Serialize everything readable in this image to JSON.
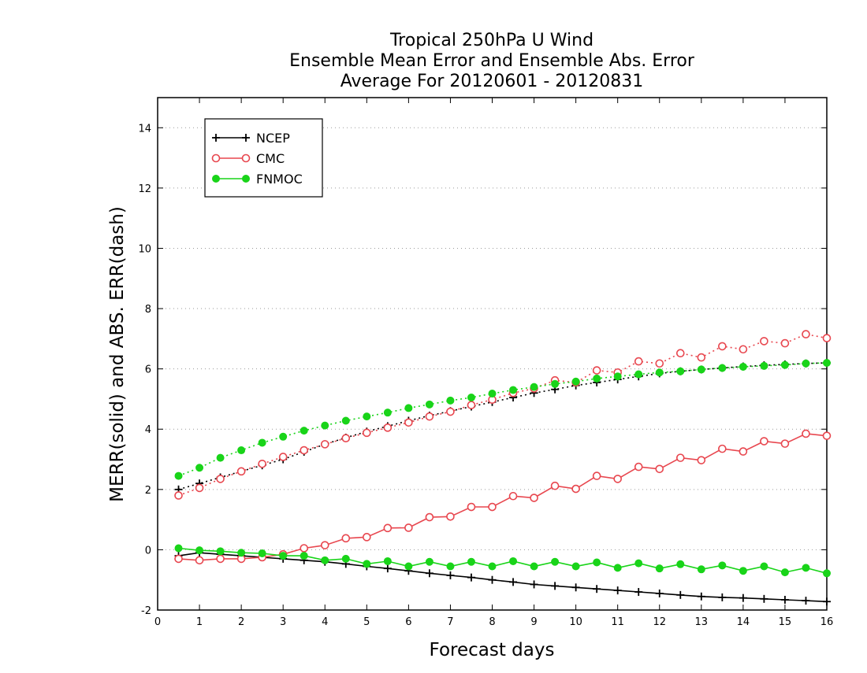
{
  "chart_data": {
    "type": "line",
    "title_lines": [
      "Tropical 250hPa U Wind",
      "Ensemble Mean Error and Ensemble Abs. Error",
      "Average For 20120601 - 20120831"
    ],
    "xlabel": "Forecast days",
    "ylabel": "MERR(solid) and ABS. ERR(dash)",
    "xlim": [
      0,
      16
    ],
    "ylim": [
      -2,
      15
    ],
    "x_ticks": [
      0,
      1,
      2,
      3,
      4,
      5,
      6,
      7,
      8,
      9,
      10,
      11,
      12,
      13,
      14,
      15,
      16
    ],
    "y_ticks": [
      -2,
      0,
      2,
      4,
      6,
      8,
      10,
      12,
      14
    ],
    "grid": "horizontal dotted",
    "legend_position": "top-left",
    "x": [
      0.5,
      1.0,
      1.5,
      2.0,
      2.5,
      3.0,
      3.5,
      4.0,
      4.5,
      5.0,
      5.5,
      6.0,
      6.5,
      7.0,
      7.5,
      8.0,
      8.5,
      9.0,
      9.5,
      10.0,
      10.5,
      11.0,
      11.5,
      12.0,
      12.5,
      13.0,
      13.5,
      14.0,
      14.5,
      15.0,
      15.5,
      16.0
    ],
    "series": [
      {
        "name": "NCEP",
        "color": "#000000",
        "marker": "plus",
        "mean_error": [
          -0.2,
          -0.1,
          -0.15,
          -0.2,
          -0.25,
          -0.3,
          -0.35,
          -0.4,
          -0.47,
          -0.55,
          -0.62,
          -0.7,
          -0.78,
          -0.85,
          -0.92,
          -1.0,
          -1.07,
          -1.15,
          -1.2,
          -1.25,
          -1.3,
          -1.35,
          -1.4,
          -1.45,
          -1.5,
          -1.55,
          -1.58,
          -1.6,
          -1.63,
          -1.66,
          -1.69,
          -1.72
        ],
        "abs_error": [
          2.0,
          2.2,
          2.4,
          2.6,
          2.8,
          3.0,
          3.25,
          3.5,
          3.72,
          3.92,
          4.1,
          4.28,
          4.45,
          4.6,
          4.75,
          4.9,
          5.05,
          5.2,
          5.32,
          5.45,
          5.55,
          5.65,
          5.75,
          5.85,
          5.92,
          5.98,
          6.03,
          6.08,
          6.12,
          6.15,
          6.18,
          6.2
        ]
      },
      {
        "name": "CMC",
        "color": "#e8474f",
        "marker": "open-circle",
        "mean_error": [
          -0.3,
          -0.35,
          -0.3,
          -0.3,
          -0.25,
          -0.15,
          0.05,
          0.15,
          0.38,
          0.42,
          0.72,
          0.73,
          1.08,
          1.1,
          1.42,
          1.42,
          1.78,
          1.72,
          2.12,
          2.02,
          2.45,
          2.35,
          2.75,
          2.68,
          3.05,
          2.97,
          3.35,
          3.26,
          3.6,
          3.52,
          3.85,
          3.78
        ],
        "abs_error": [
          1.8,
          2.05,
          2.35,
          2.6,
          2.85,
          3.08,
          3.3,
          3.5,
          3.7,
          3.88,
          4.05,
          4.22,
          4.42,
          4.58,
          4.8,
          4.98,
          5.2,
          5.35,
          5.62,
          5.55,
          5.95,
          5.88,
          6.25,
          6.18,
          6.52,
          6.38,
          6.75,
          6.65,
          6.92,
          6.85,
          7.15,
          7.02
        ]
      },
      {
        "name": "FNMOC",
        "color": "#19d419",
        "marker": "filled-circle",
        "mean_error": [
          0.05,
          -0.02,
          -0.05,
          -0.1,
          -0.12,
          -0.2,
          -0.2,
          -0.35,
          -0.3,
          -0.47,
          -0.38,
          -0.55,
          -0.4,
          -0.55,
          -0.4,
          -0.55,
          -0.38,
          -0.55,
          -0.4,
          -0.55,
          -0.42,
          -0.6,
          -0.45,
          -0.62,
          -0.48,
          -0.65,
          -0.52,
          -0.7,
          -0.55,
          -0.75,
          -0.6,
          -0.78
        ],
        "abs_error": [
          2.45,
          2.72,
          3.05,
          3.3,
          3.55,
          3.75,
          3.95,
          4.12,
          4.28,
          4.42,
          4.55,
          4.7,
          4.82,
          4.95,
          5.05,
          5.18,
          5.3,
          5.4,
          5.5,
          5.58,
          5.68,
          5.75,
          5.82,
          5.88,
          5.92,
          5.98,
          6.03,
          6.07,
          6.1,
          6.13,
          6.18,
          6.2
        ]
      }
    ]
  }
}
